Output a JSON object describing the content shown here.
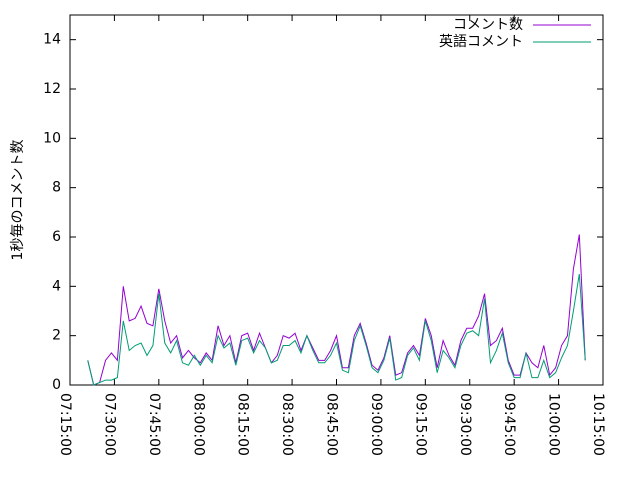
{
  "chart_data": {
    "type": "line",
    "ylabel": "1秒毎のコメント数",
    "x": [
      "07:21:00",
      "07:23:00",
      "07:25:00",
      "07:27:00",
      "07:29:00",
      "07:31:00",
      "07:33:00",
      "07:35:00",
      "07:37:00",
      "07:39:00",
      "07:41:00",
      "07:43:00",
      "07:45:00",
      "07:47:00",
      "07:49:00",
      "07:51:00",
      "07:53:00",
      "07:55:00",
      "07:57:00",
      "07:59:00",
      "08:01:00",
      "08:03:00",
      "08:05:00",
      "08:07:00",
      "08:09:00",
      "08:11:00",
      "08:13:00",
      "08:15:00",
      "08:17:00",
      "08:19:00",
      "08:21:00",
      "08:23:00",
      "08:25:00",
      "08:27:00",
      "08:29:00",
      "08:31:00",
      "08:33:00",
      "08:35:00",
      "08:37:00",
      "08:39:00",
      "08:41:00",
      "08:43:00",
      "08:45:00",
      "08:47:00",
      "08:49:00",
      "08:51:00",
      "08:53:00",
      "08:55:00",
      "08:57:00",
      "08:59:00",
      "09:01:00",
      "09:03:00",
      "09:05:00",
      "09:07:00",
      "09:09:00",
      "09:11:00",
      "09:13:00",
      "09:15:00",
      "09:17:00",
      "09:19:00",
      "09:21:00",
      "09:23:00",
      "09:25:00",
      "09:27:00",
      "09:29:00",
      "09:31:00",
      "09:33:00",
      "09:35:00",
      "09:37:00",
      "09:39:00",
      "09:41:00",
      "09:43:00",
      "09:45:00",
      "09:47:00",
      "09:49:00",
      "09:51:00",
      "09:53:00",
      "09:55:00",
      "09:57:00",
      "09:59:00",
      "10:01:00",
      "10:03:00",
      "10:05:00",
      "10:07:00",
      "10:09:00"
    ],
    "series": [
      {
        "name": "コメント数",
        "color": "#9400d3",
        "values": [
          1.0,
          0,
          0.1,
          1.0,
          1.3,
          1.0,
          4.0,
          2.6,
          2.7,
          3.2,
          2.5,
          2.4,
          3.9,
          2.6,
          1.7,
          2.0,
          1.1,
          1.4,
          1.1,
          0.9,
          1.3,
          1.0,
          2.4,
          1.6,
          2.0,
          0.9,
          2.0,
          2.1,
          1.4,
          2.1,
          1.5,
          0.9,
          1.2,
          2.0,
          1.9,
          2.1,
          1.4,
          2.0,
          1.5,
          1.0,
          1.0,
          1.4,
          2.0,
          0.7,
          0.7,
          2.0,
          2.5,
          1.7,
          0.8,
          0.6,
          1.1,
          2.0,
          0.4,
          0.5,
          1.3,
          1.6,
          1.2,
          2.7,
          2.0,
          0.7,
          1.8,
          1.2,
          0.8,
          1.8,
          2.3,
          2.3,
          2.8,
          3.7,
          1.6,
          1.8,
          2.3,
          1.0,
          0.4,
          0.4,
          1.3,
          0.9,
          0.7,
          1.6,
          0.4,
          0.7,
          1.6,
          2.0,
          4.7,
          6.1,
          1.0
        ]
      },
      {
        "name": "英語コメント",
        "color": "#009e73",
        "values": [
          1.0,
          0,
          0.1,
          0.2,
          0.2,
          0.3,
          2.6,
          1.4,
          1.6,
          1.7,
          1.2,
          1.6,
          3.7,
          1.7,
          1.3,
          1.8,
          0.9,
          0.8,
          1.2,
          0.8,
          1.2,
          0.9,
          2.0,
          1.5,
          1.7,
          0.8,
          1.8,
          1.9,
          1.3,
          1.8,
          1.5,
          0.9,
          1.0,
          1.6,
          1.6,
          1.8,
          1.3,
          2.0,
          1.4,
          0.9,
          0.9,
          1.2,
          1.7,
          0.6,
          0.5,
          1.8,
          2.4,
          1.6,
          0.7,
          0.5,
          1.0,
          1.9,
          0.2,
          0.3,
          1.2,
          1.5,
          1.0,
          2.6,
          1.8,
          0.5,
          1.4,
          1.1,
          0.7,
          1.6,
          2.1,
          2.2,
          2.0,
          3.5,
          0.9,
          1.4,
          2.1,
          0.9,
          0.3,
          0.3,
          1.3,
          0.3,
          0.3,
          1.0,
          0.3,
          0.5,
          1.1,
          1.6,
          3.0,
          4.5,
          1.0
        ]
      }
    ],
    "xlim": [
      "07:15:00",
      "10:15:00"
    ],
    "xticks": [
      "07:15:00",
      "07:30:00",
      "07:45:00",
      "08:00:00",
      "08:15:00",
      "08:30:00",
      "08:45:00",
      "09:00:00",
      "09:15:00",
      "09:30:00",
      "09:45:00",
      "10:00:00",
      "10:15:00"
    ],
    "ylim": [
      0,
      15
    ],
    "yticks": [
      0,
      2,
      4,
      6,
      8,
      10,
      12,
      14
    ],
    "legend": "top-right"
  }
}
